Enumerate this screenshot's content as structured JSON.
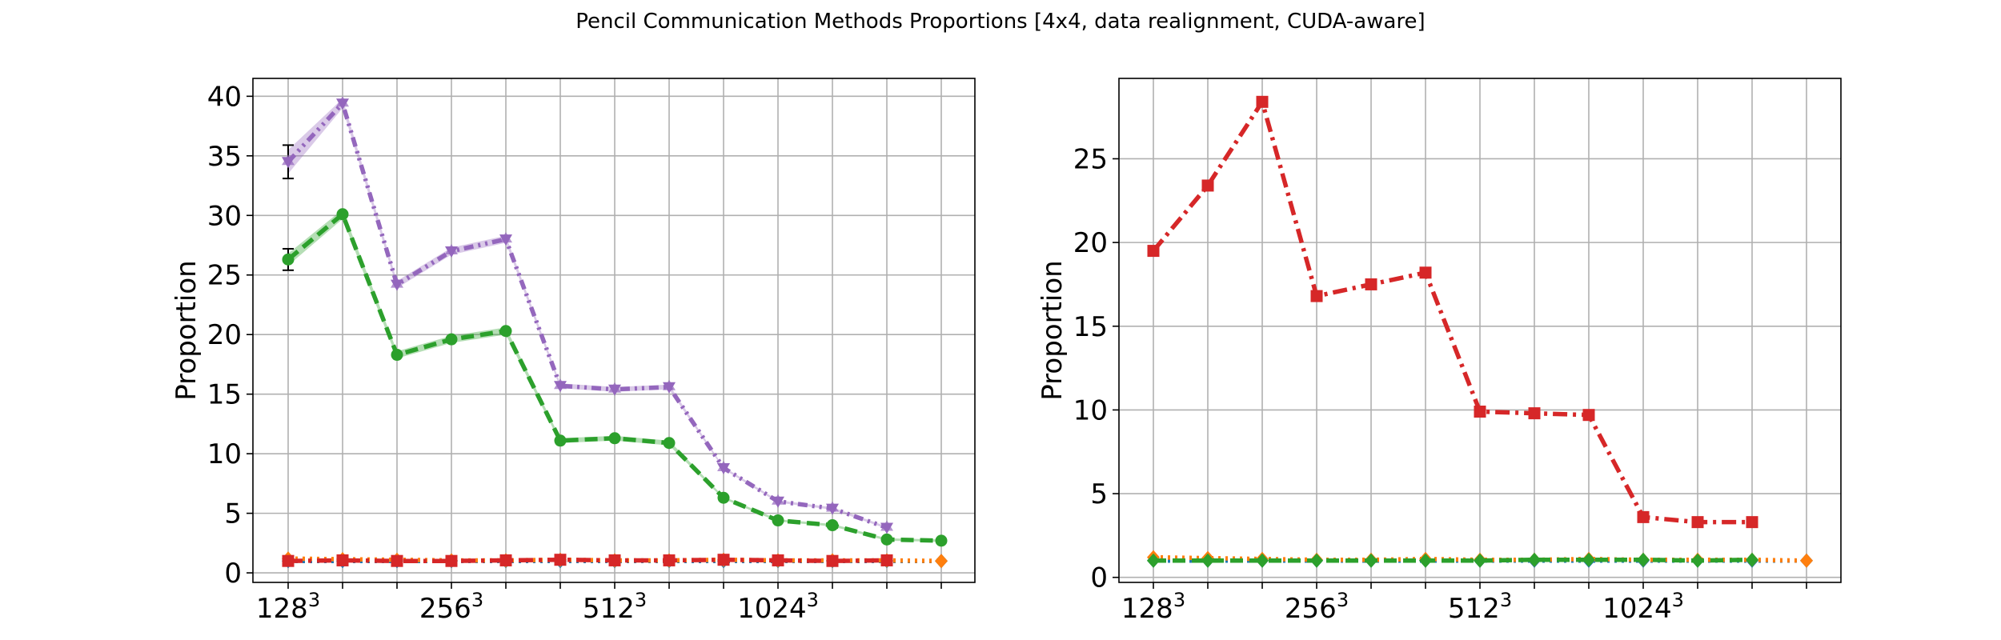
{
  "figure": {
    "title": "Pencil Communication Methods Proportions [4x4, data realignment, CUDA-aware]"
  },
  "chart_data": [
    {
      "type": "line",
      "title": "",
      "xlabel": "",
      "ylabel": "Proportion",
      "ylim": [
        -0.8,
        41.5
      ],
      "yticks": [
        0,
        5,
        10,
        15,
        20,
        25,
        30,
        35,
        40
      ],
      "xtick_labels": [
        "128^3",
        "256^3",
        "512^3",
        "1024^3"
      ],
      "x_size_index": [
        0,
        1,
        2,
        3,
        4,
        5,
        6,
        7,
        8,
        9,
        10,
        11,
        12
      ],
      "grid": true,
      "series": [
        {
          "color": "#1f77b4",
          "linestyle": "dotted",
          "marker": "diamond",
          "values": [
            1,
            1,
            1,
            1,
            1,
            1,
            1,
            1,
            1,
            1,
            1,
            1,
            1
          ]
        },
        {
          "color": "#ff7f0e",
          "linestyle": "dotted",
          "marker": "diamond",
          "values": [
            1.2,
            1.15,
            1.1,
            1.05,
            1.05,
            1.1,
            1.05,
            1.05,
            1.1,
            1.05,
            1.05,
            1.05,
            1.0
          ]
        },
        {
          "color": "#2ca02c",
          "linestyle": "dashed",
          "marker": "circle",
          "values": [
            26.3,
            30.1,
            18.3,
            19.6,
            20.3,
            11.1,
            11.3,
            10.9,
            6.3,
            4.4,
            4.0,
            2.8,
            2.7
          ],
          "error": [
            0.5,
            0.4,
            0.3,
            0.3,
            0.3,
            0.2,
            0.2,
            0.2,
            0.1,
            0.1,
            0.1,
            0.1,
            0.1
          ]
        },
        {
          "color": "#d62728",
          "linestyle": "dashdot",
          "marker": "square",
          "values": [
            1.0,
            1.05,
            1.0,
            1.0,
            1.05,
            1.1,
            1.05,
            1.05,
            1.1,
            1.05,
            1.0,
            1.05
          ]
        },
        {
          "color": "#9467bd",
          "linestyle": "dashdotdot",
          "marker": "triangle-down",
          "values": [
            34.5,
            39.4,
            24.2,
            27.0,
            28.0,
            15.7,
            15.4,
            15.6,
            8.8,
            6.0,
            5.4,
            3.8
          ],
          "error": [
            1.0,
            0.4,
            0.3,
            0.3,
            0.3,
            0.2,
            0.2,
            0.2,
            0.1,
            0.1,
            0.1,
            0.1
          ]
        }
      ]
    },
    {
      "type": "line",
      "title": "",
      "xlabel": "",
      "ylabel": "Proportion",
      "ylim": [
        -0.3,
        29.8
      ],
      "yticks": [
        0,
        5,
        10,
        15,
        20,
        25
      ],
      "xtick_labels": [
        "128^3",
        "256^3",
        "512^3",
        "1024^3"
      ],
      "x_size_index": [
        0,
        1,
        2,
        3,
        4,
        5,
        6,
        7,
        8,
        9,
        10,
        11,
        12
      ],
      "grid": true,
      "series": [
        {
          "color": "#1f77b4",
          "linestyle": "dotted",
          "marker": "diamond",
          "values": [
            1,
            1,
            1,
            1,
            1,
            1,
            1,
            1,
            1,
            1,
            1,
            1,
            1
          ]
        },
        {
          "color": "#ff7f0e",
          "linestyle": "dotted",
          "marker": "diamond",
          "values": [
            1.2,
            1.15,
            1.1,
            1.05,
            1.05,
            1.1,
            1.05,
            1.05,
            1.1,
            1.05,
            1.05,
            1.05,
            1.0
          ]
        },
        {
          "color": "#d62728",
          "linestyle": "dashdot",
          "marker": "square",
          "values": [
            19.5,
            23.4,
            28.4,
            16.8,
            17.5,
            18.2,
            9.9,
            9.8,
            9.7,
            3.6,
            3.3,
            3.3
          ]
        },
        {
          "color": "#2ca02c",
          "linestyle": "dashed",
          "marker": "diamond",
          "values": [
            1.0,
            1.0,
            1.0,
            1.0,
            1.0,
            1.0,
            1.0,
            1.05,
            1.05,
            1.05,
            1.0,
            1.05
          ]
        }
      ]
    }
  ]
}
